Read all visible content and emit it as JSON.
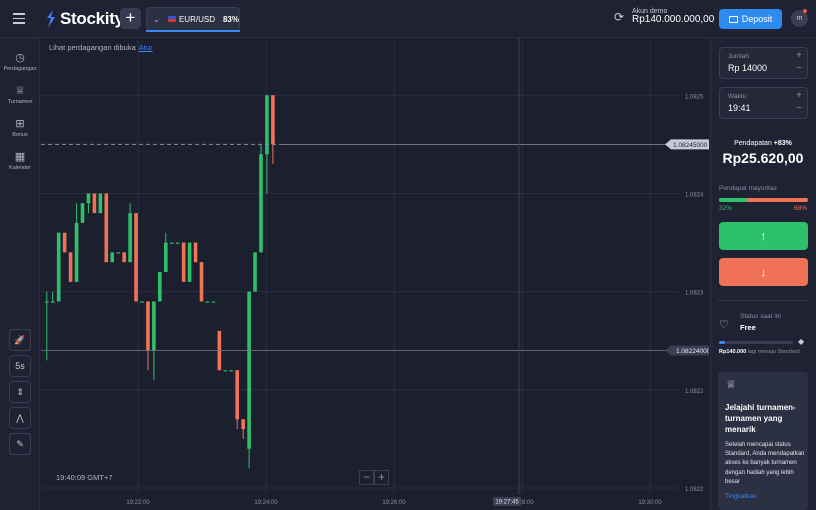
{
  "header": {
    "logo_text": "Stockity",
    "asset": {
      "name": "EUR/USD",
      "payout": "83%"
    },
    "account": {
      "label": "Akun demo",
      "balance": "Rp140.000.000,00"
    },
    "deposit_label": "Deposit",
    "avatar_initial": "m"
  },
  "sidebar": {
    "items": [
      {
        "label": "Perdagangan",
        "icon": "clock-icon"
      },
      {
        "label": "Turnamen",
        "icon": "trophy-icon"
      },
      {
        "label": "Bonus",
        "icon": "gift-icon"
      },
      {
        "label": "Kalender",
        "icon": "calendar-icon"
      }
    ],
    "tools": [
      {
        "label": "🚀",
        "icon": "rocket-icon"
      },
      {
        "label": "5s",
        "icon": "timeframe-icon"
      },
      {
        "label": "⇕",
        "icon": "candles-icon"
      },
      {
        "label": "⋀",
        "icon": "indicators-icon"
      },
      {
        "label": "✎",
        "icon": "pencil-icon"
      }
    ]
  },
  "chart": {
    "info_text": "Lihat perdagangan dibuka",
    "info_link": "Atur",
    "clock": "19:40:09 GMT+7",
    "price_ticks": [
      "1.0825",
      "1.0824",
      "1.0823",
      "1.0822",
      "1.0822"
    ],
    "current_price": "1.08245000",
    "open_price": "1.08224000",
    "time_ticks": [
      "19:22:00",
      "19:24:00",
      "19:26:00",
      "19:28:00",
      "19:30:00"
    ],
    "time_marker": "19:27:45",
    "zoom_out": "−",
    "zoom_in": "+"
  },
  "chart_data": {
    "type": "candlestick",
    "series": [
      {
        "name": "",
        "values": [
          {
            "o": 1.08229,
            "c": 1.08229,
            "h": 1.0823,
            "l": 1.08223
          },
          {
            "o": 1.08229,
            "c": 1.08229,
            "h": 1.0823,
            "l": 1.08229
          },
          {
            "o": 1.08229,
            "c": 1.08236,
            "h": 1.08236,
            "l": 1.08229
          },
          {
            "o": 1.08236,
            "c": 1.08234,
            "h": 1.08236,
            "l": 1.08234
          },
          {
            "o": 1.08234,
            "c": 1.08231,
            "h": 1.08234,
            "l": 1.08231
          },
          {
            "o": 1.08231,
            "c": 1.08237,
            "h": 1.08239,
            "l": 1.08231
          },
          {
            "o": 1.08237,
            "c": 1.08239,
            "h": 1.08239,
            "l": 1.08237
          },
          {
            "o": 1.08239,
            "c": 1.0824,
            "h": 1.0824,
            "l": 1.08238
          },
          {
            "o": 1.0824,
            "c": 1.08238,
            "h": 1.0824,
            "l": 1.08238
          },
          {
            "o": 1.08238,
            "c": 1.0824,
            "h": 1.0824,
            "l": 1.08238
          },
          {
            "o": 1.0824,
            "c": 1.08233,
            "h": 1.0824,
            "l": 1.08233
          },
          {
            "o": 1.08233,
            "c": 1.08234,
            "h": 1.08234,
            "l": 1.08233
          },
          {
            "o": 1.08234,
            "c": 1.08234,
            "h": 1.08234,
            "l": 1.08234
          },
          {
            "o": 1.08234,
            "c": 1.08233,
            "h": 1.08234,
            "l": 1.08233
          },
          {
            "o": 1.08233,
            "c": 1.08238,
            "h": 1.08239,
            "l": 1.08233
          },
          {
            "o": 1.08238,
            "c": 1.08229,
            "h": 1.08238,
            "l": 1.08229
          },
          {
            "o": 1.08229,
            "c": 1.08229,
            "h": 1.08229,
            "l": 1.08229
          },
          {
            "o": 1.08229,
            "c": 1.08224,
            "h": 1.08229,
            "l": 1.08222
          },
          {
            "o": 1.08224,
            "c": 1.08229,
            "h": 1.08229,
            "l": 1.08221
          },
          {
            "o": 1.08229,
            "c": 1.08232,
            "h": 1.08232,
            "l": 1.08229
          },
          {
            "o": 1.08232,
            "c": 1.08235,
            "h": 1.08236,
            "l": 1.08232
          },
          {
            "o": 1.08235,
            "c": 1.08235,
            "h": 1.08235,
            "l": 1.08235
          },
          {
            "o": 1.08235,
            "c": 1.08235,
            "h": 1.08235,
            "l": 1.08235
          },
          {
            "o": 1.08235,
            "c": 1.08231,
            "h": 1.08235,
            "l": 1.08231
          },
          {
            "o": 1.08231,
            "c": 1.08235,
            "h": 1.08235,
            "l": 1.08231
          },
          {
            "o": 1.08235,
            "c": 1.08233,
            "h": 1.08235,
            "l": 1.08233
          },
          {
            "o": 1.08233,
            "c": 1.08229,
            "h": 1.08233,
            "l": 1.08229
          },
          {
            "o": 1.08229,
            "c": 1.08229,
            "h": 1.08229,
            "l": 1.08229
          },
          {
            "o": 1.08229,
            "c": 1.08229,
            "h": 1.08229,
            "l": 1.08229
          },
          {
            "o": 1.08226,
            "c": 1.08222,
            "h": 1.08226,
            "l": 1.08222
          },
          {
            "o": 1.08222,
            "c": 1.08222,
            "h": 1.08222,
            "l": 1.08222
          },
          {
            "o": 1.08222,
            "c": 1.08222,
            "h": 1.08222,
            "l": 1.08222
          },
          {
            "o": 1.08222,
            "c": 1.08217,
            "h": 1.08222,
            "l": 1.08216
          },
          {
            "o": 1.08217,
            "c": 1.08216,
            "h": 1.08217,
            "l": 1.08215
          },
          {
            "o": 1.08214,
            "c": 1.0823,
            "h": 1.0823,
            "l": 1.08212
          },
          {
            "o": 1.0823,
            "c": 1.08234,
            "h": 1.08234,
            "l": 1.0823
          },
          {
            "o": 1.08234,
            "c": 1.08244,
            "h": 1.08245,
            "l": 1.08234
          },
          {
            "o": 1.08244,
            "c": 1.0825,
            "h": 1.0825,
            "l": 1.0824
          },
          {
            "o": 1.0825,
            "c": 1.08245,
            "h": 1.0825,
            "l": 1.08243
          }
        ]
      }
    ],
    "x": [
      "19:22:00",
      "19:24:00",
      "19:26:00",
      "19:28:00",
      "19:30:00"
    ],
    "ylim": [
      1.0821,
      1.08254
    ],
    "colors": {
      "up": "#2ec16b",
      "down": "#f07358"
    },
    "grid": true
  },
  "panel": {
    "amount": {
      "label": "Jumlah",
      "value": "Rp 14000"
    },
    "time": {
      "label": "Waktu",
      "value": "19:41"
    },
    "income_label": "Pendapatan",
    "income_pct": "+83%",
    "income_value": "Rp25.620,00",
    "majority_label": "Pendapat mayoritas",
    "majority_up": "32%",
    "majority_down": "68%",
    "majority_up_fraction": 0.32,
    "status_label": "Status saat ini",
    "status_value": "Free",
    "status_progress": 0.08,
    "status_note_amount": "Rp140.000",
    "status_note_rest": "lagi menuju Standard",
    "promo": {
      "title": "Jelajahi turnamen-turnamen yang menarik",
      "body": "Setelah mencapai status Standard, Anda mendapatkan akses ke banyak turnamen dengan hadiah yang lebih besar",
      "link": "Tingkatkan"
    }
  }
}
